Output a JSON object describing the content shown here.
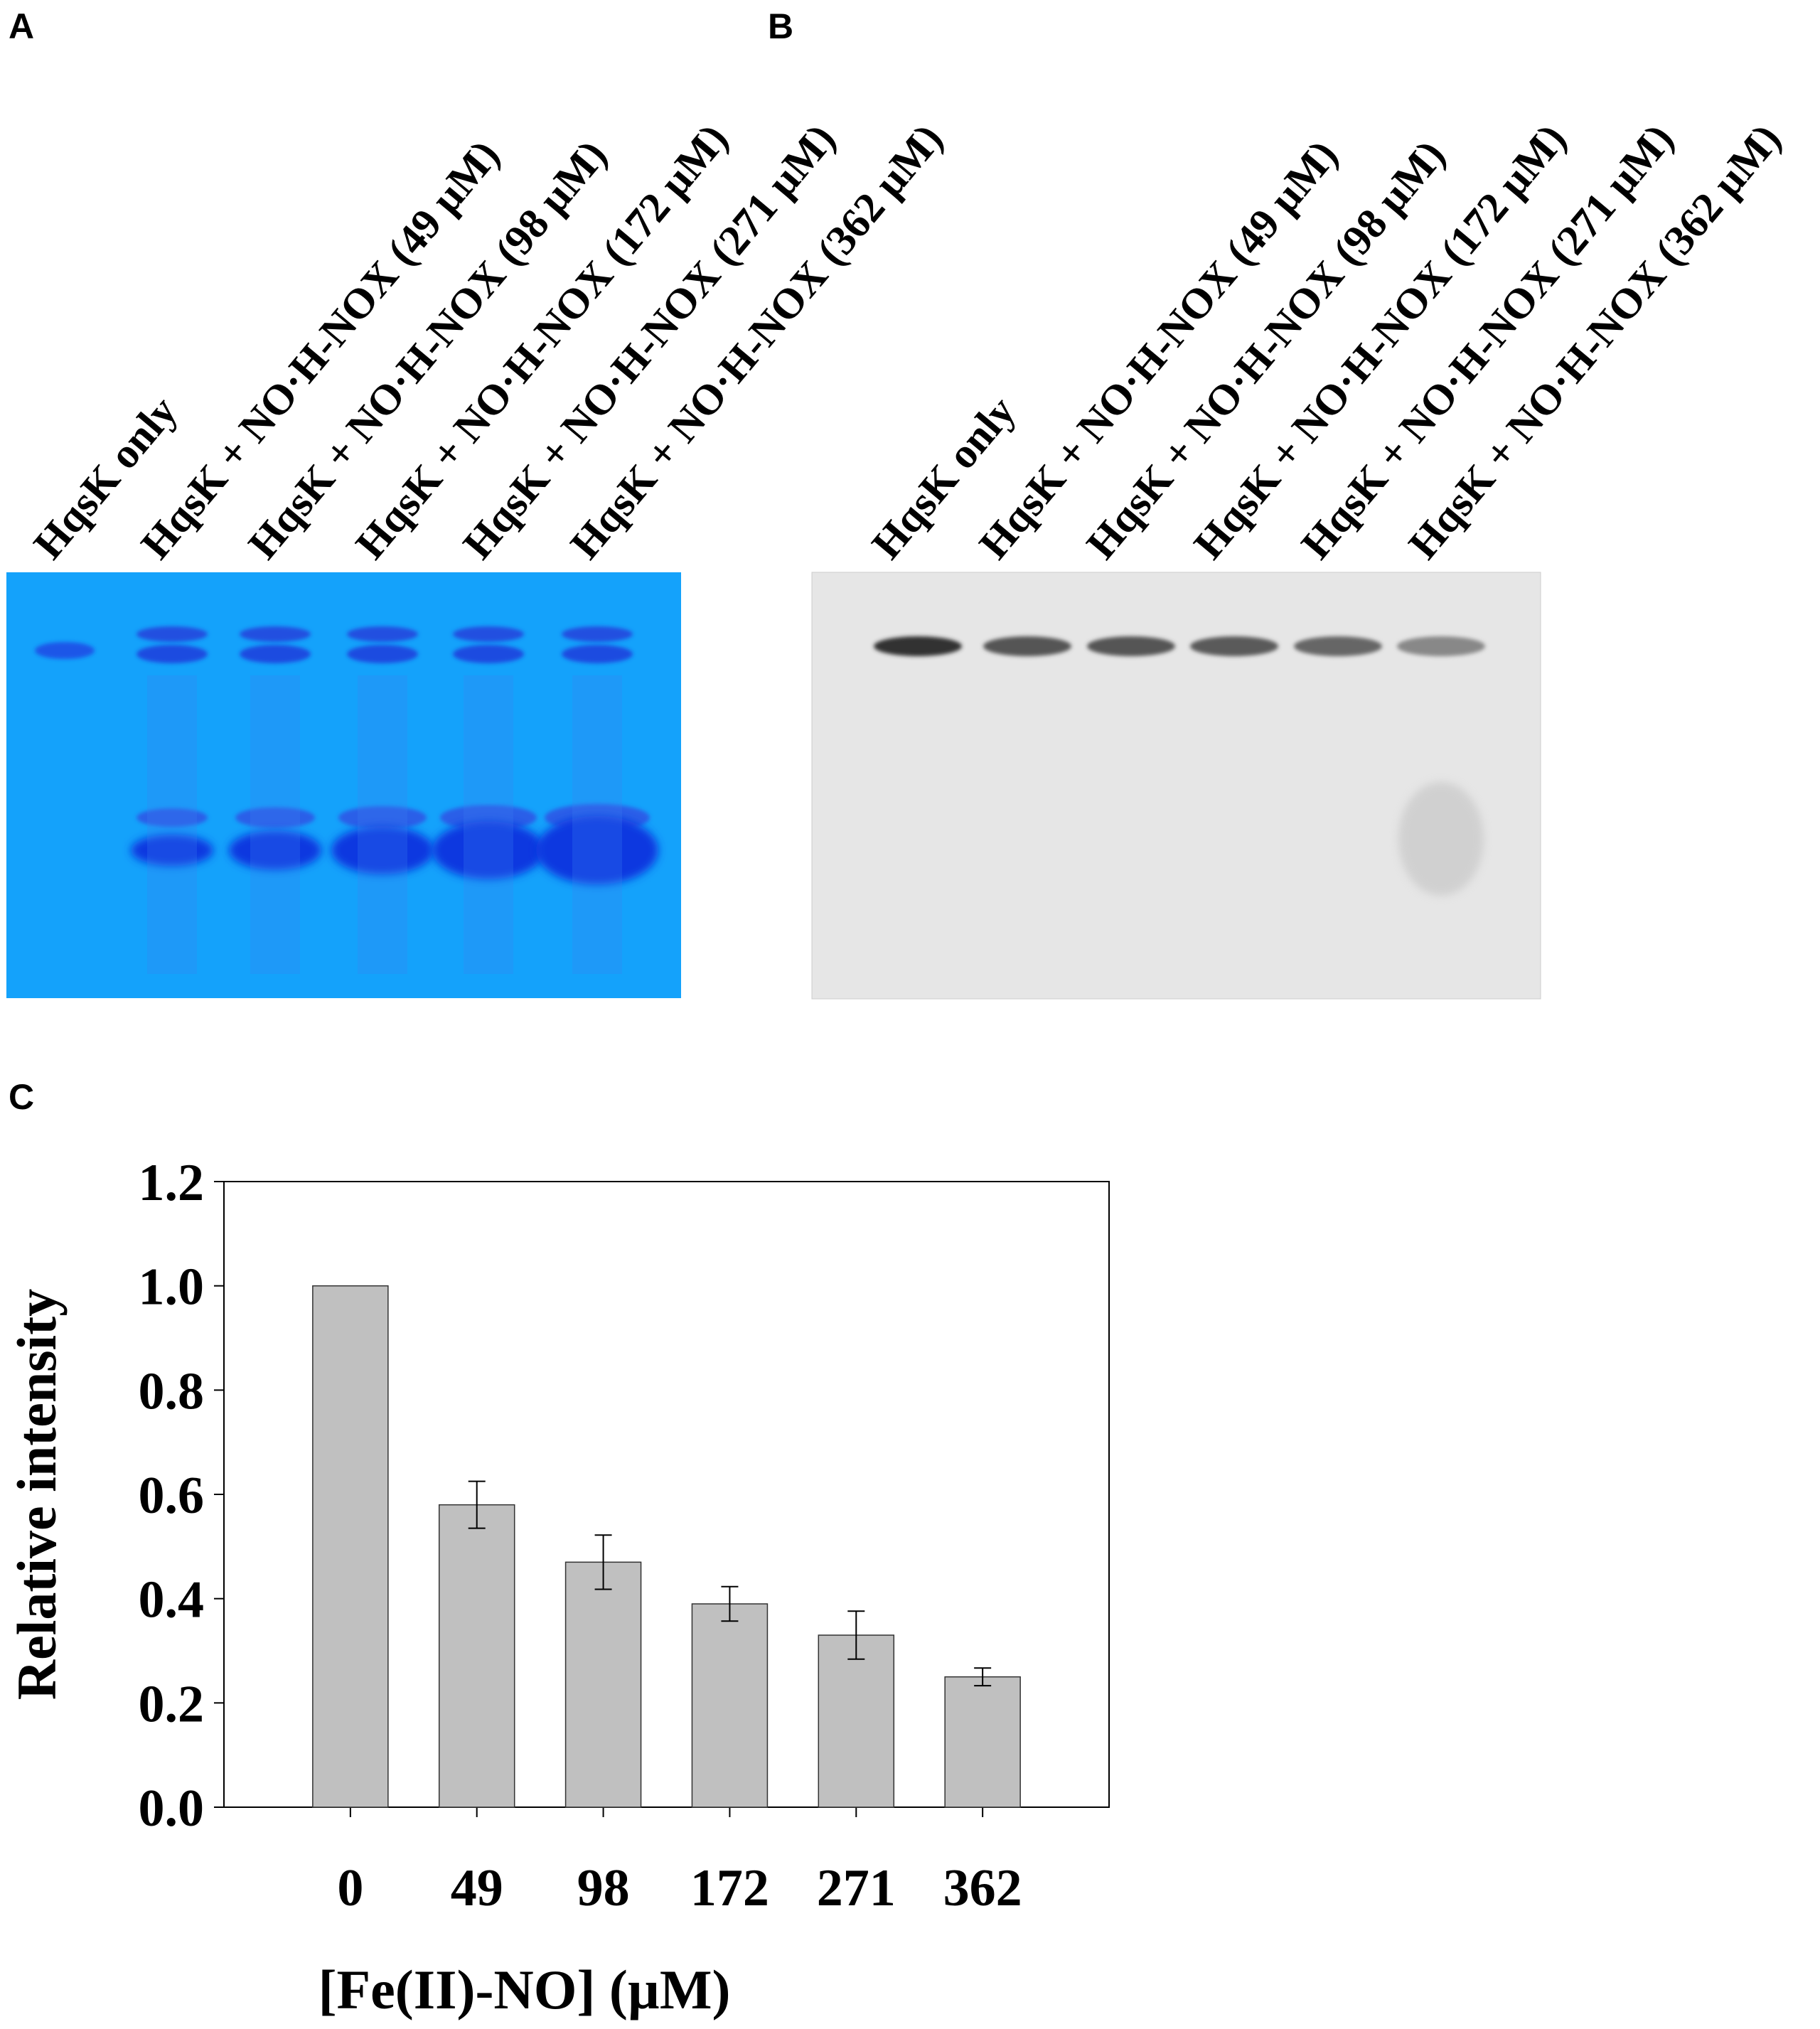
{
  "panels": {
    "a": {
      "label": "A",
      "lanes": [
        "HqsK only",
        "HqsK + NO·H-NOX (49 µM)",
        "HqsK + NO·H-NOX (98 µM)",
        "HqsK + NO·H-NOX (172 µM)",
        "HqsK + NO·H-NOX (271 µM)",
        "HqsK + NO·H-NOX (362 µM)"
      ]
    },
    "b": {
      "label": "B",
      "lanes": [
        "HqsK only",
        "HqsK + NO·H-NOX (49 µM)",
        "HqsK + NO·H-NOX (98 µM)",
        "HqsK + NO·H-NOX (172 µM)",
        "HqsK + NO·H-NOX (271 µM)",
        "HqsK + NO·H-NOX (362 µM)"
      ]
    },
    "c": {
      "label": "C"
    }
  },
  "chart_data": {
    "type": "bar",
    "categories": [
      "0",
      "49",
      "98",
      "172",
      "271",
      "362"
    ],
    "values": [
      1.0,
      0.58,
      0.47,
      0.39,
      0.33,
      0.25
    ],
    "errors": [
      null,
      0.045,
      0.052,
      0.033,
      0.046,
      0.017
    ],
    "color": "#c0c0c0",
    "xlabel": "[Fe(II)-NO] (µM)",
    "ylabel": "Relative intensity",
    "ylim": [
      0,
      1.2
    ],
    "yticks": [
      {
        "value": 0,
        "label": "0.0"
      },
      0.2,
      0.4,
      0.6,
      0.8,
      {
        "value": 1,
        "label": "1.0"
      },
      1.2
    ]
  }
}
